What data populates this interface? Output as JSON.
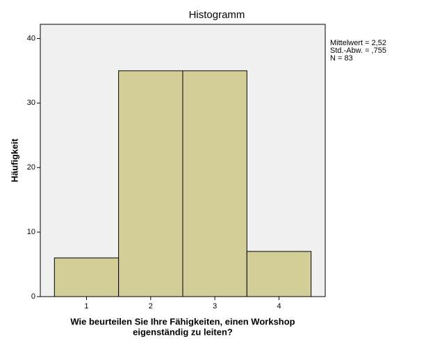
{
  "chart_data": {
    "type": "histogram",
    "title": "Histogramm",
    "xlabel": [
      "Wie beurteilen Sie Ihre Fähigkeiten, einen Workshop",
      "eigenständig zu leiten?"
    ],
    "ylabel": "Häufigkeit",
    "bins": [
      0.5,
      1.5,
      2.5,
      3.5,
      4.5
    ],
    "counts": [
      6,
      35,
      35,
      7
    ],
    "color": "#d3ce97",
    "xlim": [
      0.28,
      4.72
    ],
    "xticks": [
      1,
      2,
      3,
      4
    ],
    "ylim": [
      0,
      42.2
    ],
    "yticks": [
      0,
      10,
      20,
      30,
      40
    ],
    "stats": [
      "Mittelwert = 2,52",
      "Std.-Abw. = ,755",
      "N = 83"
    ]
  }
}
